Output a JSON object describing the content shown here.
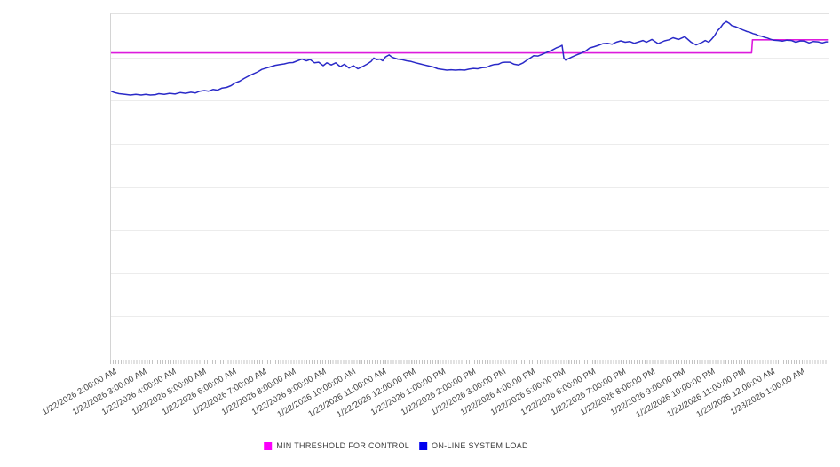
{
  "chart_data": {
    "type": "line",
    "title": "",
    "background": "#ffffff",
    "y_axis": {
      "labels_visible": false,
      "ylim": [
        0,
        100
      ],
      "gridline_count": 8,
      "gridline_color": "#ececec"
    },
    "x_axis": {
      "hours_span": 24,
      "minor_tick_interval_minutes": 5,
      "tick_labels": [
        "1/22/2026 2:00:00 AM",
        "1/22/2026 3:00:00 AM",
        "1/22/2026 4:00:00 AM",
        "1/22/2026 5:00:00 AM",
        "1/22/2026 6:00:00 AM",
        "1/22/2026 7:00:00 AM",
        "1/22/2026 8:00:00 AM",
        "1/22/2026 9:00:00 AM",
        "1/22/2026 10:00:00 AM",
        "1/22/2026 11:00:00 AM",
        "1/22/2026 12:00:00 PM",
        "1/22/2026 1:00:00 PM",
        "1/22/2026 2:00:00 PM",
        "1/22/2026 3:00:00 PM",
        "1/22/2026 4:00:00 PM",
        "1/22/2026 5:00:00 PM",
        "1/22/2026 6:00:00 PM",
        "1/22/2026 7:00:00 PM",
        "1/22/2026 8:00:00 PM",
        "1/22/2026 9:00:00 PM",
        "1/22/2026 10:00:00 PM",
        "1/22/2026 11:00:00 PM",
        "1/23/2026 12:00:00 AM",
        "1/23/2026 1:00:00 AM"
      ]
    },
    "legend": [
      {
        "label": "MIN THRESHOLD FOR CONTROL",
        "color": "#fb00fb"
      },
      {
        "label": "ON-LINE SYSTEM LOAD",
        "color": "#0000ee"
      }
    ],
    "series": [
      {
        "name": "MIN THRESHOLD FOR CONTROL",
        "color": "#dd1bdd",
        "width": 1.6,
        "points": [
          [
            0,
            88.8
          ],
          [
            21.4,
            88.8
          ],
          [
            21.43,
            92.6
          ],
          [
            23.98,
            92.6
          ]
        ]
      },
      {
        "name": "ON-LINE SYSTEM LOAD",
        "color": "#2a2ac8",
        "width": 1.5,
        "points": [
          [
            0,
            77.7
          ],
          [
            0.12,
            77.3
          ],
          [
            0.27,
            77
          ],
          [
            0.47,
            76.8
          ],
          [
            0.65,
            76.6
          ],
          [
            0.83,
            76.8
          ],
          [
            1.01,
            76.6
          ],
          [
            1.16,
            76.8
          ],
          [
            1.31,
            76.6
          ],
          [
            1.48,
            76.7
          ],
          [
            1.6,
            77
          ],
          [
            1.78,
            76.8
          ],
          [
            1.96,
            77.1
          ],
          [
            2.14,
            76.9
          ],
          [
            2.31,
            77.3
          ],
          [
            2.49,
            77.1
          ],
          [
            2.67,
            77.4
          ],
          [
            2.82,
            77.2
          ],
          [
            2.97,
            77.7
          ],
          [
            3.12,
            77.9
          ],
          [
            3.26,
            77.7
          ],
          [
            3.41,
            78.2
          ],
          [
            3.56,
            78
          ],
          [
            3.71,
            78.6
          ],
          [
            3.86,
            78.8
          ],
          [
            4.01,
            79.3
          ],
          [
            4.15,
            80.1
          ],
          [
            4.3,
            80.6
          ],
          [
            4.45,
            81.4
          ],
          [
            4.6,
            82.1
          ],
          [
            4.75,
            82.7
          ],
          [
            4.9,
            83.3
          ],
          [
            5.04,
            84
          ],
          [
            5.19,
            84.4
          ],
          [
            5.34,
            84.8
          ],
          [
            5.49,
            85.2
          ],
          [
            5.64,
            85.4
          ],
          [
            5.79,
            85.6
          ],
          [
            5.93,
            85.9
          ],
          [
            6.08,
            86
          ],
          [
            6.23,
            86.5
          ],
          [
            6.38,
            87
          ],
          [
            6.53,
            86.5
          ],
          [
            6.65,
            86.9
          ],
          [
            6.8,
            85.9
          ],
          [
            6.94,
            86.1
          ],
          [
            7.09,
            85.1
          ],
          [
            7.21,
            85.9
          ],
          [
            7.36,
            85.3
          ],
          [
            7.51,
            85.9
          ],
          [
            7.66,
            84.8
          ],
          [
            7.8,
            85.5
          ],
          [
            7.95,
            84.4
          ],
          [
            8.1,
            85.1
          ],
          [
            8.25,
            84.2
          ],
          [
            8.4,
            84.8
          ],
          [
            8.55,
            85.5
          ],
          [
            8.69,
            86.3
          ],
          [
            8.78,
            87.3
          ],
          [
            8.87,
            86.8
          ],
          [
            8.99,
            87
          ],
          [
            9.08,
            86.5
          ],
          [
            9.17,
            87.6
          ],
          [
            9.29,
            88.2
          ],
          [
            9.38,
            87.6
          ],
          [
            9.47,
            87.3
          ],
          [
            9.58,
            87
          ],
          [
            9.73,
            86.8
          ],
          [
            9.88,
            86.5
          ],
          [
            10.03,
            86.3
          ],
          [
            10.18,
            85.9
          ],
          [
            10.33,
            85.6
          ],
          [
            10.47,
            85.3
          ],
          [
            10.62,
            85
          ],
          [
            10.77,
            84.7
          ],
          [
            10.92,
            84.2
          ],
          [
            11.07,
            84
          ],
          [
            11.22,
            83.8
          ],
          [
            11.36,
            83.9
          ],
          [
            11.51,
            83.8
          ],
          [
            11.66,
            83.9
          ],
          [
            11.81,
            83.8
          ],
          [
            11.96,
            84.1
          ],
          [
            12.11,
            84.3
          ],
          [
            12.25,
            84.2
          ],
          [
            12.4,
            84.5
          ],
          [
            12.55,
            84.6
          ],
          [
            12.67,
            85.1
          ],
          [
            12.79,
            85.4
          ],
          [
            12.94,
            85.5
          ],
          [
            13.06,
            86
          ],
          [
            13.17,
            86.1
          ],
          [
            13.32,
            86.1
          ],
          [
            13.47,
            85.5
          ],
          [
            13.62,
            85.3
          ],
          [
            13.77,
            85.9
          ],
          [
            13.92,
            86.8
          ],
          [
            14.04,
            87.5
          ],
          [
            14.12,
            88
          ],
          [
            14.27,
            87.9
          ],
          [
            14.42,
            88.4
          ],
          [
            14.57,
            89
          ],
          [
            14.72,
            89.5
          ],
          [
            14.87,
            90.2
          ],
          [
            15.01,
            90.7
          ],
          [
            15.07,
            91
          ],
          [
            15.13,
            87.3
          ],
          [
            15.19,
            86.7
          ],
          [
            15.4,
            87.6
          ],
          [
            15.55,
            88.2
          ],
          [
            15.7,
            88.7
          ],
          [
            15.85,
            89.3
          ],
          [
            15.99,
            90.2
          ],
          [
            16.14,
            90.6
          ],
          [
            16.29,
            91
          ],
          [
            16.44,
            91.5
          ],
          [
            16.59,
            91.6
          ],
          [
            16.74,
            91.3
          ],
          [
            16.88,
            91.9
          ],
          [
            17.03,
            92.3
          ],
          [
            17.18,
            91.9
          ],
          [
            17.33,
            92.1
          ],
          [
            17.48,
            91.6
          ],
          [
            17.63,
            92
          ],
          [
            17.77,
            92.4
          ],
          [
            17.89,
            91.9
          ],
          [
            18.07,
            92.7
          ],
          [
            18.28,
            91.5
          ],
          [
            18.49,
            92.3
          ],
          [
            18.64,
            92.6
          ],
          [
            18.78,
            93.2
          ],
          [
            18.96,
            92.7
          ],
          [
            19.17,
            93.5
          ],
          [
            19.38,
            91.9
          ],
          [
            19.55,
            91.1
          ],
          [
            19.76,
            91.9
          ],
          [
            19.85,
            92.4
          ],
          [
            19.97,
            91.9
          ],
          [
            20.06,
            92.7
          ],
          [
            20.15,
            93.6
          ],
          [
            20.27,
            95.3
          ],
          [
            20.36,
            96.1
          ],
          [
            20.45,
            97.2
          ],
          [
            20.56,
            97.9
          ],
          [
            20.65,
            97.4
          ],
          [
            20.74,
            96.7
          ],
          [
            20.86,
            96.4
          ],
          [
            20.95,
            96.1
          ],
          [
            21.04,
            95.7
          ],
          [
            21.16,
            95.3
          ],
          [
            21.25,
            95
          ],
          [
            21.34,
            94.8
          ],
          [
            21.45,
            94.4
          ],
          [
            21.54,
            94.2
          ],
          [
            21.63,
            93.8
          ],
          [
            21.75,
            93.6
          ],
          [
            21.84,
            93.3
          ],
          [
            21.93,
            93.1
          ],
          [
            22.05,
            92.7
          ],
          [
            22.14,
            92.5
          ],
          [
            22.29,
            92.4
          ],
          [
            22.43,
            92.2
          ],
          [
            22.58,
            92.5
          ],
          [
            22.73,
            92.4
          ],
          [
            22.88,
            91.9
          ],
          [
            23.03,
            92.3
          ],
          [
            23.18,
            92.2
          ],
          [
            23.32,
            91.7
          ],
          [
            23.47,
            92.1
          ],
          [
            23.62,
            92
          ],
          [
            23.77,
            91.7
          ],
          [
            23.89,
            92
          ],
          [
            23.98,
            92
          ]
        ]
      }
    ]
  }
}
